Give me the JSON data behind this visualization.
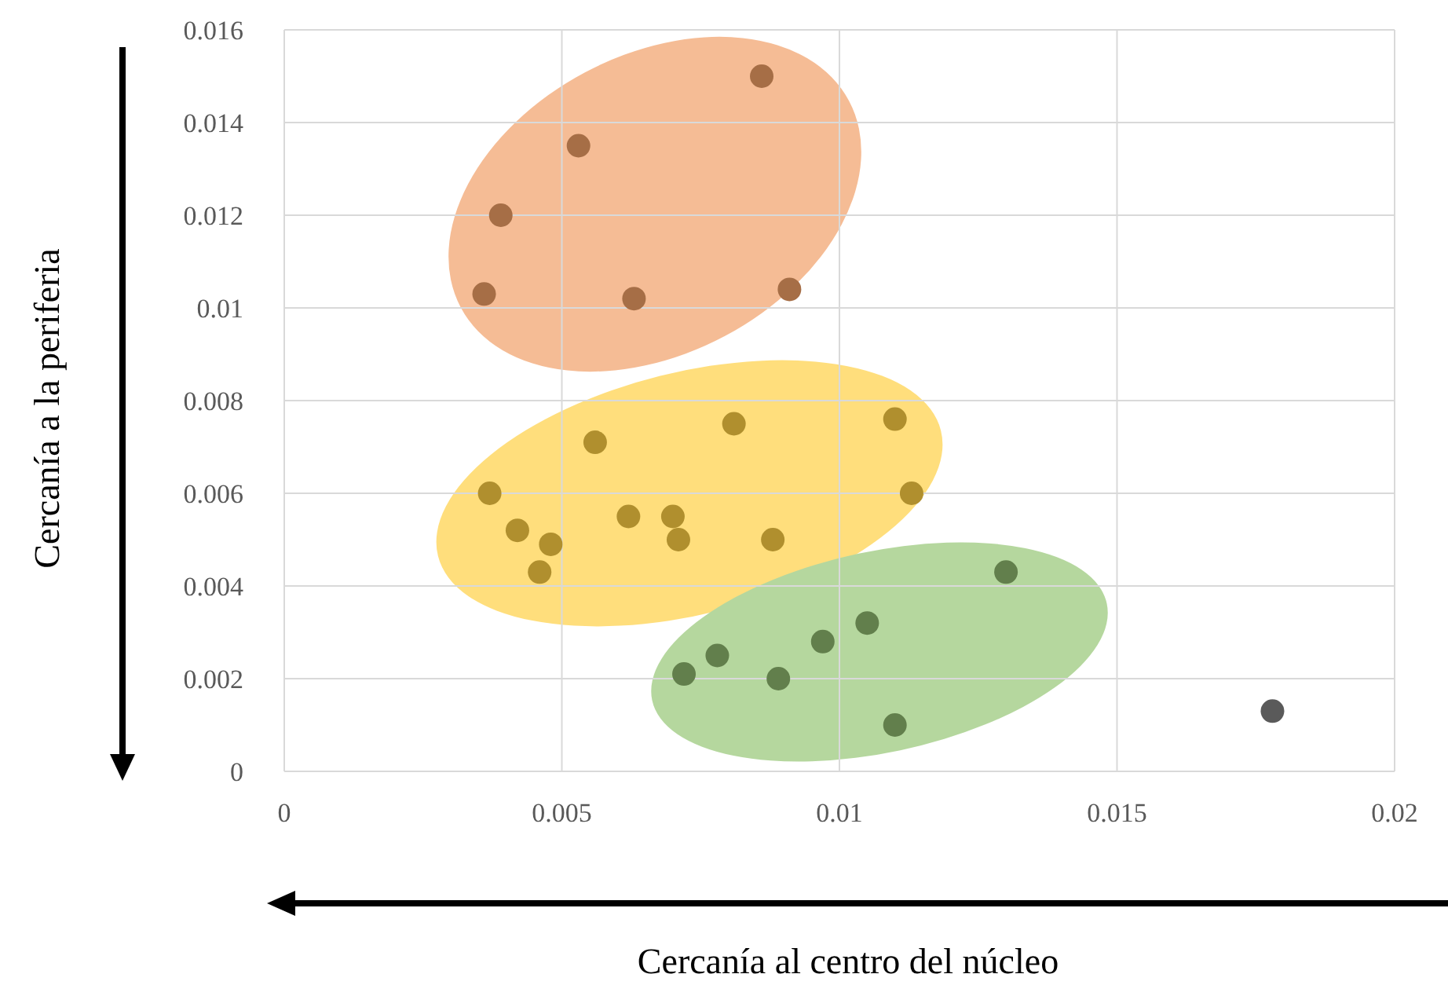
{
  "chart_data": {
    "type": "scatter",
    "xlabel": "Cercanía al centro del núcleo",
    "ylabel": "Cercanía a la periferia",
    "xlim": [
      0,
      0.02
    ],
    "xticks": [
      0,
      0.005,
      0.01,
      0.015,
      0.02
    ],
    "ylim": [
      0,
      0.016
    ],
    "yticks": [
      0,
      0.002,
      0.004,
      0.006,
      0.008,
      0.01,
      0.012,
      0.014,
      0.016
    ],
    "grid": true,
    "marker": "circle",
    "series": [
      {
        "color": "#a66e46",
        "x": [
          0.0086,
          0.0053,
          0.0039,
          0.0036,
          0.0063,
          0.0091
        ],
        "values": [
          0.015,
          0.0135,
          0.012,
          0.0103,
          0.0102,
          0.0104
        ]
      },
      {
        "color": "#b08f2e",
        "x": [
          0.0056,
          0.0081,
          0.011,
          0.0113,
          0.0037,
          0.0042,
          0.0048,
          0.0046,
          0.0062,
          0.007,
          0.0071,
          0.0088
        ],
        "values": [
          0.0071,
          0.0075,
          0.0076,
          0.006,
          0.006,
          0.0052,
          0.0049,
          0.0043,
          0.0055,
          0.0055,
          0.005,
          0.005
        ]
      },
      {
        "color": "#627f4c",
        "x": [
          0.013,
          0.0072,
          0.0078,
          0.0089,
          0.0097,
          0.0105,
          0.011
        ],
        "values": [
          0.0043,
          0.0021,
          0.0025,
          0.002,
          0.0028,
          0.0032,
          0.001
        ]
      },
      {
        "color": "#5a5a5a",
        "x": [
          0.0178
        ],
        "values": [
          0.0013
        ]
      }
    ]
  }
}
